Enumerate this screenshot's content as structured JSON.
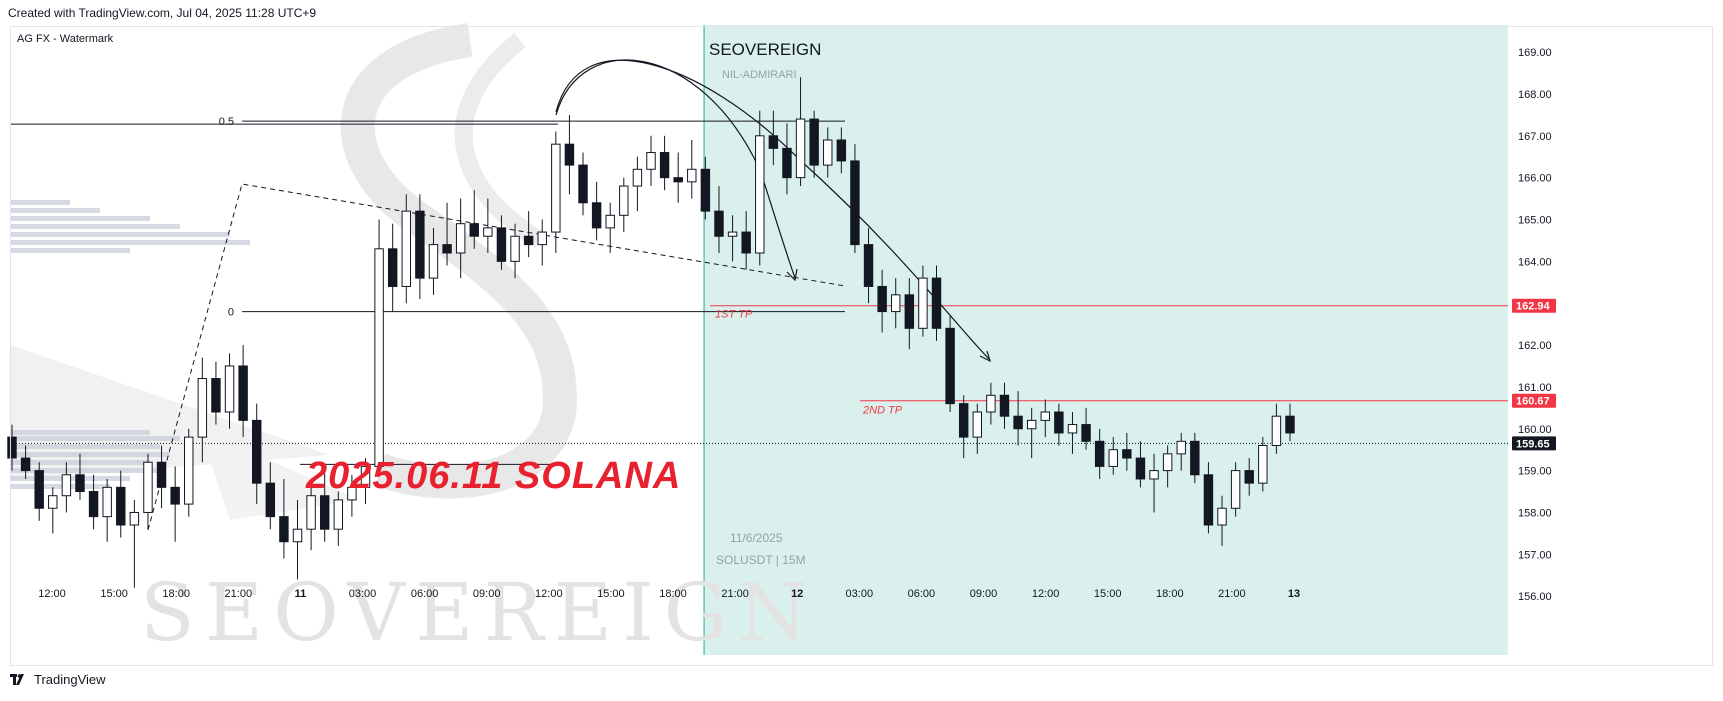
{
  "header": {
    "created_text": "Created with TradingView.com, Jul 04, 2025 11:28 UTC+9"
  },
  "footer": {
    "brand": "TradingView"
  },
  "chart_data": {
    "type": "candlestick",
    "symbol": "SOLUSDT",
    "interval": "15M",
    "legend_label": "AG FX - Watermark",
    "ylim": [
      155.0,
      169.6
    ],
    "y_ticks": [
      "169.00",
      "168.00",
      "167.00",
      "166.00",
      "165.00",
      "164.00",
      "163.00",
      "162.00",
      "161.00",
      "160.00",
      "159.00",
      "158.00",
      "157.00",
      "156.00"
    ],
    "x_ticks": [
      {
        "label": "12:00",
        "h": 0
      },
      {
        "label": "15:00",
        "h": 3
      },
      {
        "label": "18:00",
        "h": 6
      },
      {
        "label": "21:00",
        "h": 9
      },
      {
        "label": "11",
        "h": 12,
        "bold": true
      },
      {
        "label": "03:00",
        "h": 15
      },
      {
        "label": "06:00",
        "h": 18
      },
      {
        "label": "09:00",
        "h": 21
      },
      {
        "label": "12:00",
        "h": 24
      },
      {
        "label": "15:00",
        "h": 27
      },
      {
        "label": "18:00",
        "h": 30
      },
      {
        "label": "21:00",
        "h": 33
      },
      {
        "label": "12",
        "h": 36,
        "bold": true
      },
      {
        "label": "03:00",
        "h": 39
      },
      {
        "label": "06:00",
        "h": 42
      },
      {
        "label": "09:00",
        "h": 45
      },
      {
        "label": "12:00",
        "h": 48
      },
      {
        "label": "15:00",
        "h": 51
      },
      {
        "label": "18:00",
        "h": 54
      },
      {
        "label": "21:00",
        "h": 57
      },
      {
        "label": "13",
        "h": 60,
        "bold": true
      }
    ],
    "price_labels": [
      {
        "value": 162.94,
        "text": "162.94",
        "color": "#f23645"
      },
      {
        "value": 160.67,
        "text": "160.67",
        "color": "#f23645"
      },
      {
        "value": 159.65,
        "text": "159.65",
        "color": "#131722"
      }
    ],
    "fib_levels": [
      {
        "value": 167.35,
        "label": "0.5"
      },
      {
        "value": 162.8,
        "label": "0"
      }
    ],
    "tp_labels": [
      {
        "text": "1ST TP",
        "value": 162.94
      },
      {
        "text": "2ND TP",
        "value": 160.67
      }
    ],
    "watermark": {
      "brand": "SEOVEREIGN",
      "sub": "NIL-ADMIRARI",
      "date": "11/6/2025",
      "pair": "SOLUSDT | 15M",
      "big": "SEOVEREIGN"
    },
    "annotation_title": "2025.06.11 SOLANA",
    "shaded_start_h": 31.5,
    "candles": [
      [
        159.8,
        160.1,
        159.0,
        159.3
      ],
      [
        159.3,
        159.6,
        158.8,
        159.0
      ],
      [
        159.0,
        159.2,
        157.8,
        158.1
      ],
      [
        158.1,
        158.6,
        157.5,
        158.4
      ],
      [
        158.4,
        159.2,
        158.0,
        158.9
      ],
      [
        158.9,
        159.4,
        158.3,
        158.5
      ],
      [
        158.5,
        158.9,
        157.6,
        157.9
      ],
      [
        157.9,
        158.8,
        157.3,
        158.6
      ],
      [
        158.6,
        159.0,
        157.4,
        157.7
      ],
      [
        157.7,
        158.3,
        156.2,
        158.0
      ],
      [
        158.0,
        159.4,
        157.6,
        159.2
      ],
      [
        159.2,
        159.6,
        158.1,
        158.6
      ],
      [
        158.6,
        159.1,
        157.3,
        158.2
      ],
      [
        158.2,
        160.0,
        157.9,
        159.8
      ],
      [
        159.8,
        161.7,
        159.2,
        161.2
      ],
      [
        161.2,
        161.6,
        160.1,
        160.4
      ],
      [
        160.4,
        161.8,
        160.0,
        161.5
      ],
      [
        161.5,
        162.0,
        159.8,
        160.2
      ],
      [
        160.2,
        160.6,
        158.2,
        158.7
      ],
      [
        158.7,
        159.2,
        157.6,
        157.9
      ],
      [
        157.9,
        158.8,
        156.9,
        157.3
      ],
      [
        157.3,
        158.3,
        156.4,
        157.6
      ],
      [
        157.6,
        158.6,
        157.1,
        158.4
      ],
      [
        158.4,
        159.0,
        157.3,
        157.6
      ],
      [
        157.6,
        158.5,
        157.2,
        158.3
      ],
      [
        158.3,
        158.9,
        157.9,
        158.6
      ],
      [
        158.6,
        159.3,
        158.2,
        159.1
      ],
      [
        159.1,
        165.0,
        159.0,
        164.3
      ],
      [
        164.3,
        164.9,
        162.8,
        163.4
      ],
      [
        163.4,
        165.6,
        163.0,
        165.2
      ],
      [
        165.2,
        165.6,
        163.1,
        163.6
      ],
      [
        163.6,
        164.8,
        163.2,
        164.4
      ],
      [
        164.4,
        165.4,
        163.9,
        164.2
      ],
      [
        164.2,
        165.5,
        163.6,
        164.9
      ],
      [
        164.9,
        165.7,
        164.3,
        164.6
      ],
      [
        164.6,
        165.5,
        164.2,
        164.8
      ],
      [
        164.8,
        165.1,
        163.8,
        164.0
      ],
      [
        164.0,
        164.9,
        163.6,
        164.6
      ],
      [
        164.6,
        165.2,
        164.1,
        164.4
      ],
      [
        164.4,
        165.0,
        163.9,
        164.7
      ],
      [
        164.7,
        167.1,
        164.2,
        166.8
      ],
      [
        166.8,
        167.5,
        165.6,
        166.3
      ],
      [
        166.3,
        166.6,
        165.1,
        165.4
      ],
      [
        165.4,
        165.9,
        164.5,
        164.8
      ],
      [
        164.8,
        165.4,
        164.2,
        165.1
      ],
      [
        165.1,
        166.0,
        164.7,
        165.8
      ],
      [
        165.8,
        166.5,
        165.2,
        166.2
      ],
      [
        166.2,
        167.0,
        165.8,
        166.6
      ],
      [
        166.6,
        167.0,
        165.7,
        166.0
      ],
      [
        166.0,
        166.6,
        165.4,
        165.9
      ],
      [
        165.9,
        166.9,
        165.5,
        166.2
      ],
      [
        166.2,
        166.5,
        165.0,
        165.2
      ],
      [
        165.2,
        165.8,
        164.2,
        164.6
      ],
      [
        164.6,
        165.1,
        164.0,
        164.7
      ],
      [
        164.7,
        165.2,
        163.8,
        164.2
      ],
      [
        164.2,
        167.6,
        163.9,
        167.0
      ],
      [
        167.0,
        167.6,
        166.3,
        166.7
      ],
      [
        166.7,
        167.3,
        165.6,
        166.0
      ],
      [
        166.0,
        168.4,
        165.8,
        167.4
      ],
      [
        167.4,
        167.6,
        166.0,
        166.3
      ],
      [
        166.3,
        167.2,
        166.0,
        166.9
      ],
      [
        166.9,
        167.2,
        166.1,
        166.4
      ],
      [
        166.4,
        166.8,
        164.2,
        164.4
      ],
      [
        164.4,
        164.8,
        163.0,
        163.4
      ],
      [
        163.4,
        163.8,
        162.3,
        162.8
      ],
      [
        162.8,
        163.6,
        162.4,
        163.2
      ],
      [
        163.2,
        163.6,
        161.9,
        162.4
      ],
      [
        162.4,
        163.9,
        162.2,
        163.6
      ],
      [
        163.6,
        163.9,
        162.1,
        162.4
      ],
      [
        162.4,
        162.7,
        160.4,
        160.6
      ],
      [
        160.6,
        160.8,
        159.3,
        159.8
      ],
      [
        159.8,
        160.6,
        159.4,
        160.4
      ],
      [
        160.4,
        161.1,
        160.1,
        160.8
      ],
      [
        160.8,
        161.1,
        160.0,
        160.3
      ],
      [
        160.3,
        160.9,
        159.6,
        160.0
      ],
      [
        160.0,
        160.5,
        159.3,
        160.2
      ],
      [
        160.2,
        160.7,
        159.8,
        160.4
      ],
      [
        160.4,
        160.6,
        159.6,
        159.9
      ],
      [
        159.9,
        160.4,
        159.4,
        160.1
      ],
      [
        160.1,
        160.5,
        159.5,
        159.7
      ],
      [
        159.7,
        160.0,
        158.8,
        159.1
      ],
      [
        159.1,
        159.8,
        158.9,
        159.5
      ],
      [
        159.5,
        159.9,
        159.0,
        159.3
      ],
      [
        159.3,
        159.7,
        158.6,
        158.8
      ],
      [
        158.8,
        159.4,
        158.0,
        159.0
      ],
      [
        159.0,
        159.6,
        158.6,
        159.4
      ],
      [
        159.4,
        159.9,
        159.0,
        159.7
      ],
      [
        159.7,
        159.9,
        158.7,
        158.9
      ],
      [
        158.9,
        159.2,
        157.5,
        157.7
      ],
      [
        157.7,
        158.4,
        157.2,
        158.1
      ],
      [
        158.1,
        159.2,
        157.9,
        159.0
      ],
      [
        159.0,
        159.3,
        158.4,
        158.7
      ],
      [
        158.7,
        159.8,
        158.5,
        159.6
      ],
      [
        159.6,
        160.6,
        159.4,
        160.3
      ],
      [
        160.3,
        160.6,
        159.7,
        159.9
      ]
    ]
  }
}
